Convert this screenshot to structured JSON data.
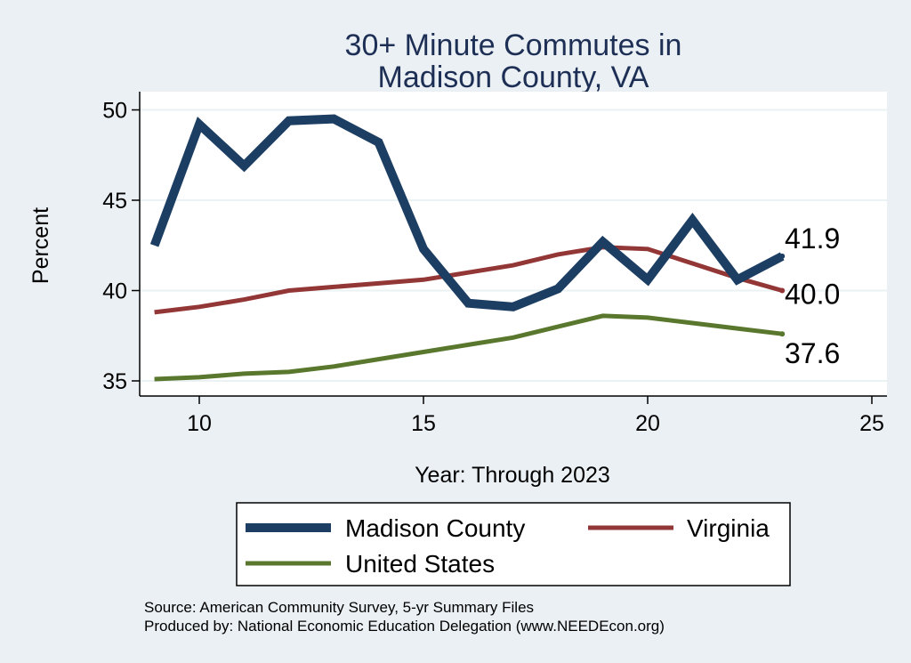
{
  "chart_data": {
    "type": "line",
    "title": [
      "30+ Minute Commutes in",
      "Madison County, VA"
    ],
    "xlabel": "Year: Through 2023",
    "ylabel": "Percent",
    "xlim": [
      9,
      25
    ],
    "ylim": [
      35,
      50
    ],
    "xticks": [
      10,
      15,
      20,
      25
    ],
    "yticks": [
      35,
      40,
      45,
      50
    ],
    "grid": true,
    "legend_position": "bottom",
    "series": [
      {
        "name": "Madison County",
        "color": "#1d3e63",
        "x": [
          9,
          10,
          11,
          12,
          13,
          14,
          15,
          16,
          17,
          18,
          19,
          20,
          21,
          22,
          23
        ],
        "values": [
          42.5,
          49.2,
          46.9,
          49.4,
          49.5,
          48.2,
          42.3,
          39.3,
          39.1,
          40.1,
          42.7,
          40.6,
          43.9,
          40.6,
          41.9
        ],
        "end_label": "41.9"
      },
      {
        "name": "Virginia",
        "color": "#933636",
        "x": [
          9,
          10,
          11,
          12,
          13,
          14,
          15,
          16,
          17,
          18,
          19,
          20,
          21,
          22,
          23
        ],
        "values": [
          38.8,
          39.1,
          39.5,
          40.0,
          40.2,
          40.4,
          40.6,
          41.0,
          41.4,
          42.0,
          42.4,
          42.3,
          41.5,
          40.7,
          40.0
        ],
        "end_label": "40.0"
      },
      {
        "name": "United States",
        "color": "#59782e",
        "x": [
          9,
          10,
          11,
          12,
          13,
          14,
          15,
          16,
          17,
          18,
          19,
          20,
          21,
          22,
          23
        ],
        "values": [
          35.1,
          35.2,
          35.4,
          35.5,
          35.8,
          36.2,
          36.6,
          37.0,
          37.4,
          38.0,
          38.6,
          38.5,
          38.2,
          37.9,
          37.6
        ],
        "end_label": "37.6"
      }
    ],
    "notes": [
      "Source: American Community Survey, 5-yr Summary Files",
      "Produced by: National Economic Education Delegation (www.NEEDEcon.org)"
    ]
  }
}
